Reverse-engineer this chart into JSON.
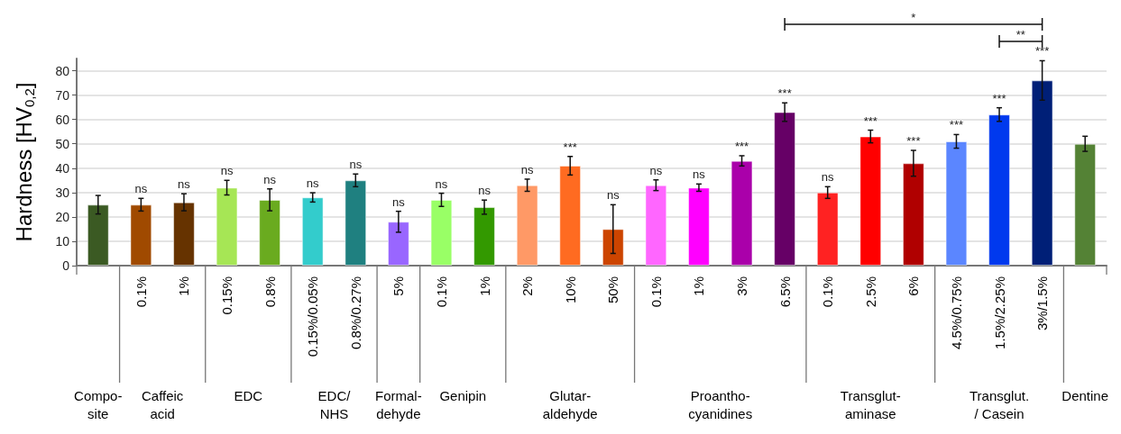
{
  "chart_data": {
    "type": "bar",
    "ylabel": "Hardness [HV$_{0,2}$]",
    "categories": [
      null,
      "0.1%",
      "1%",
      "0.15%",
      "0.8%",
      "0.15%/0.05%",
      "0.8%/0.27%",
      "5%",
      "0.1%",
      "1%",
      "2%",
      "10%",
      "50%",
      "0.1%",
      "1%",
      "3%",
      "6.5%",
      "0.1%",
      "2.5%",
      "6%",
      "4.5%/0.75%",
      "1.5%/2.25%",
      "3%/1.5%",
      null
    ],
    "values": [
      25,
      25,
      26,
      32,
      27,
      28,
      35,
      18,
      27,
      24,
      33,
      41,
      15,
      33,
      32,
      43,
      63,
      30,
      53,
      42,
      51,
      62,
      76,
      50
    ],
    "errors": [
      3.8,
      2.6,
      3.5,
      3,
      4.5,
      1.9,
      2.6,
      4.3,
      2.7,
      2.9,
      2.5,
      3.8,
      10,
      2.2,
      1.5,
      2.1,
      3.8,
      2.4,
      2.6,
      5.3,
      2.8,
      2.8,
      8.1,
      3.1
    ],
    "colors": [
      "#3b5a23",
      "#a04a00",
      "#663300",
      "#a6e655",
      "#6aab1f",
      "#33cccc",
      "#1f8080",
      "#9966ff",
      "#99ff66",
      "#339900",
      "#ff9966",
      "#ff6b21",
      "#cc4400",
      "#ff66ff",
      "#ff00ff",
      "#aa00aa",
      "#660066",
      "#ff2222",
      "#ff0000",
      "#b00000",
      "#5b86ff",
      "#0039ee",
      "#001f77",
      "#548235"
    ],
    "value_labels": [
      null,
      "ns",
      "ns",
      "ns",
      "ns",
      "ns",
      "ns",
      "ns",
      "ns",
      "ns",
      "ns",
      "***",
      "ns",
      "ns",
      "ns",
      "***",
      "***",
      "ns",
      "***",
      "***",
      "***",
      "***",
      "***",
      null
    ],
    "ylim": [
      0,
      85
    ],
    "yticks": [
      0,
      10,
      20,
      30,
      40,
      50,
      60,
      70,
      80
    ],
    "grid": "y",
    "annotations": [
      "Compo-\nsite",
      "Caffeic\nacid",
      "EDC",
      "EDC/\nNHS",
      "Formal-\ndehyde",
      "Genipin",
      "Glutar-\naldehyde",
      "Proantho-\ncyanidines",
      "Transglut-\naminase",
      "Transglut.\n/ Casein",
      "Dentine",
      "*",
      "**"
    ]
  }
}
